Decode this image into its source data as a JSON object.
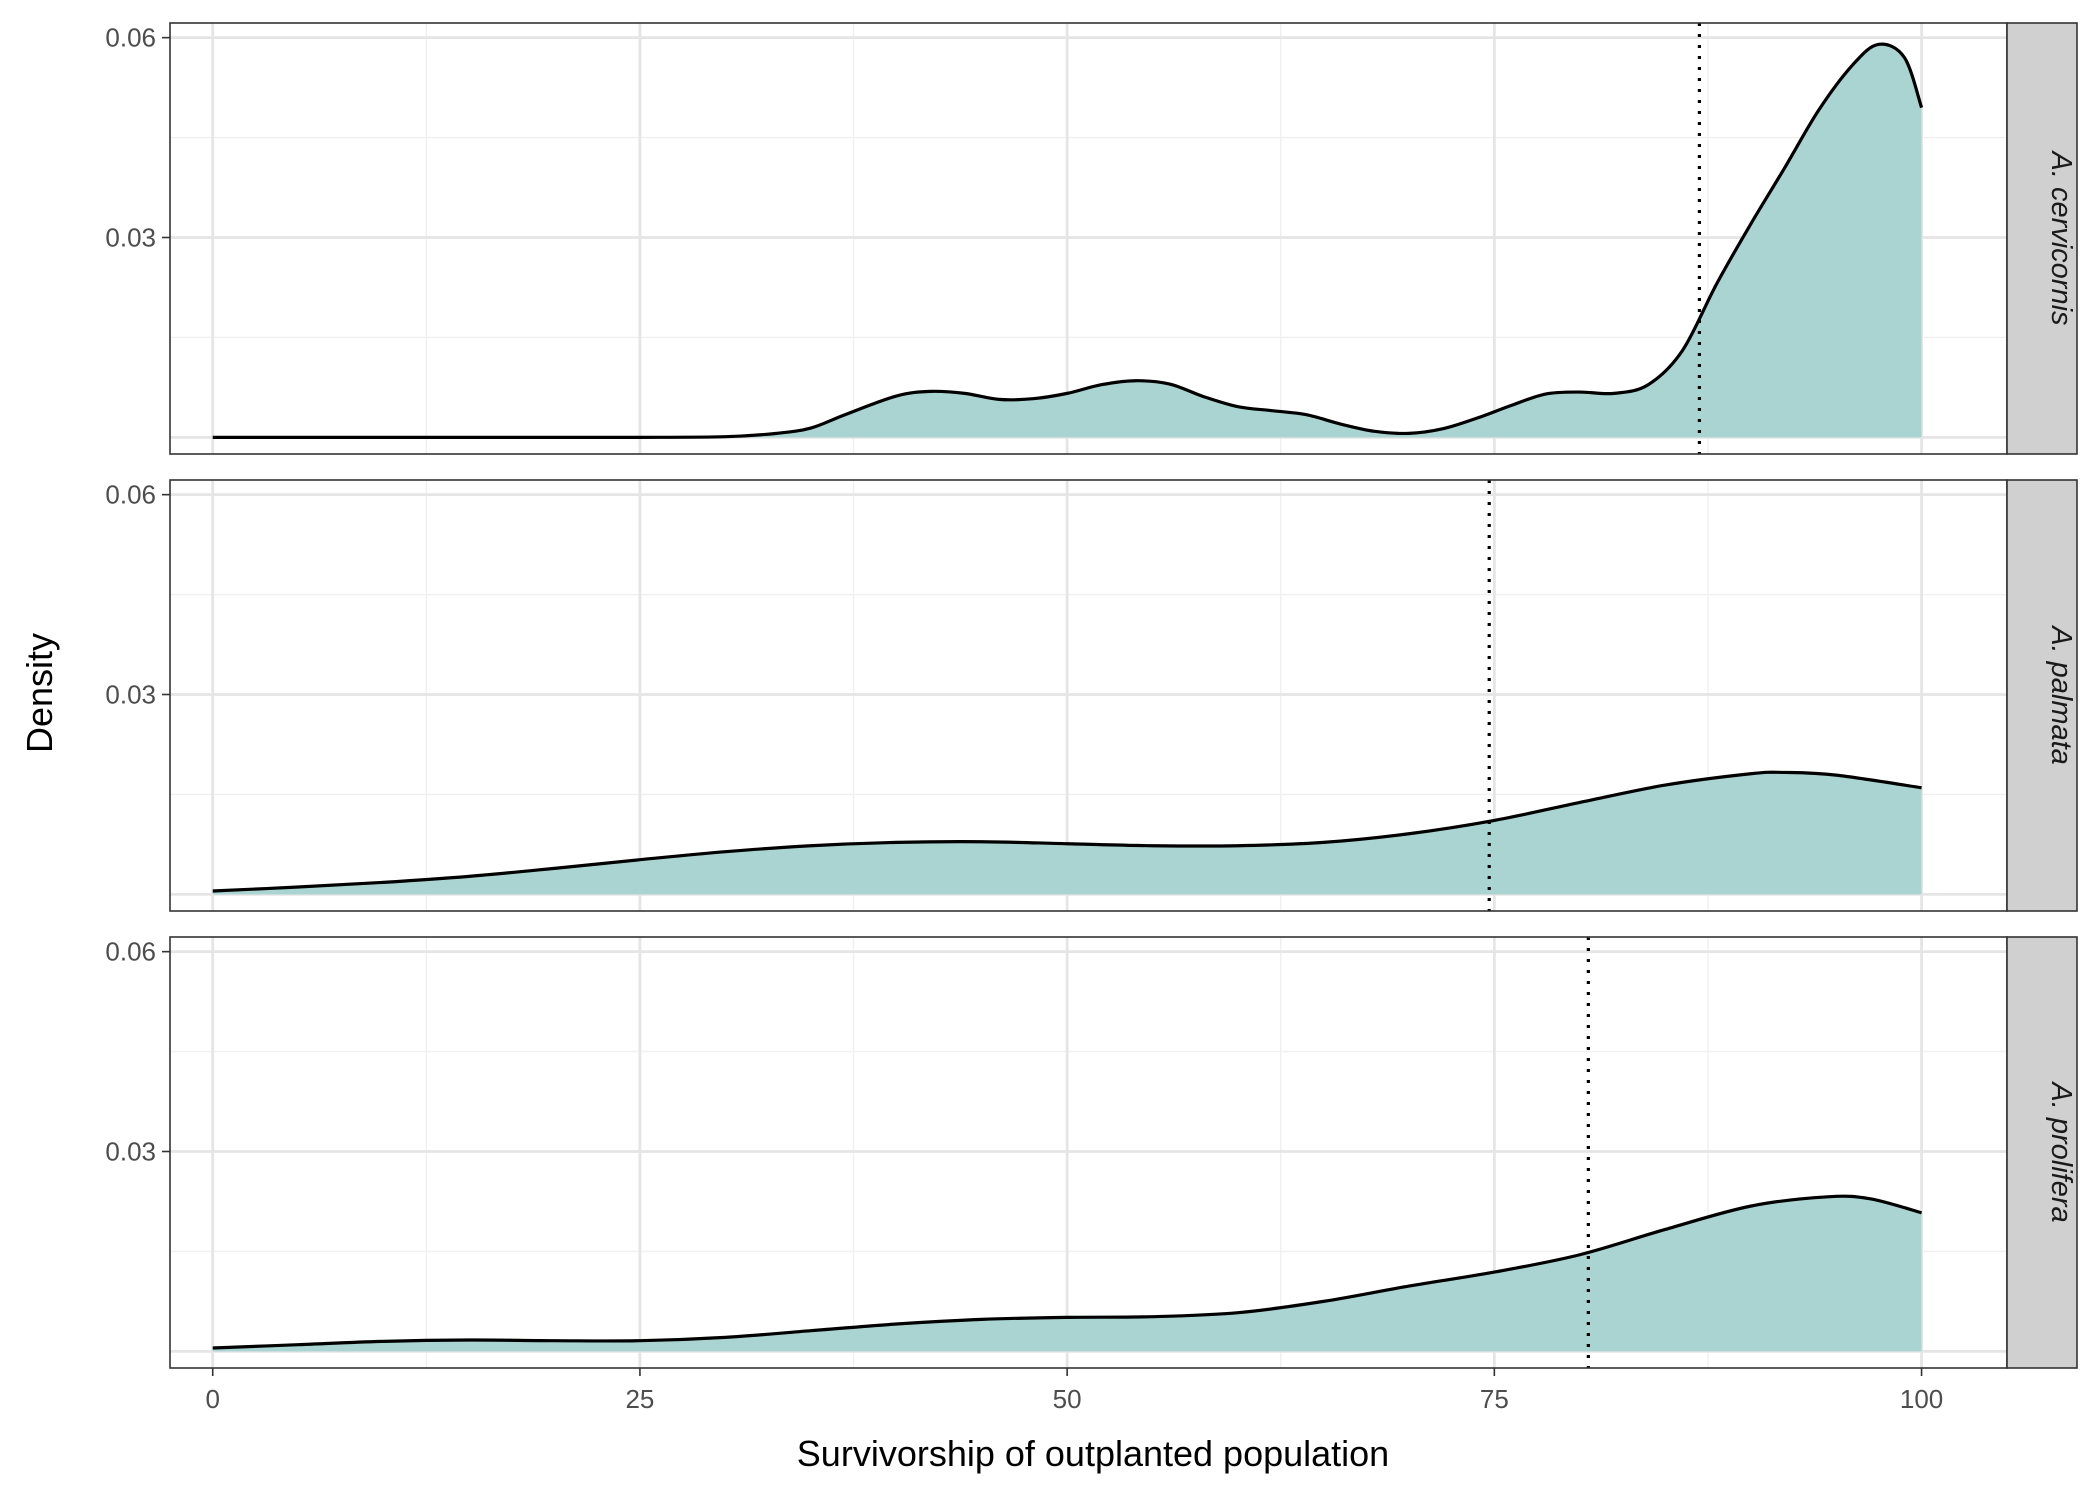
{
  "chart_data": {
    "type": "area",
    "subtype": "faceted density plot",
    "xlabel": "Survivorship of outplanted population",
    "ylabel": "Density",
    "xlim": [
      -2.5,
      105
    ],
    "ylim": [
      -0.0025,
      0.0622
    ],
    "x_ticks": [
      0,
      25,
      50,
      75,
      100
    ],
    "x_tick_labels": [
      "0",
      "25",
      "50",
      "75",
      "100"
    ],
    "y_ticks": [
      0.03,
      0.06
    ],
    "y_tick_labels": [
      "0.03",
      "0.06"
    ],
    "grid": true,
    "facet_strip_position": "right",
    "colors": {
      "fill": "#a9d4d2",
      "line": "#000000",
      "strip_bg": "#d0d0d0",
      "grid_major": "#e5e5e5",
      "grid_minor": "#f0f0f0"
    },
    "facets": [
      {
        "label": "A. cervicornis",
        "reference_line_x": 87,
        "x": [
          0,
          5,
          10,
          15,
          20,
          25,
          30,
          33,
          35,
          37,
          40,
          42,
          44,
          46,
          48,
          50,
          52,
          54,
          56,
          58,
          60,
          62,
          64,
          66,
          68,
          70,
          72,
          74,
          76,
          78,
          80,
          82,
          84,
          86,
          88,
          90,
          92,
          94,
          96,
          97.5,
          99,
          100
        ],
        "y": [
          0.0,
          0.0,
          0.0,
          0.0,
          0.0,
          0.0,
          0.0001,
          0.0006,
          0.0014,
          0.0034,
          0.0062,
          0.0069,
          0.0066,
          0.0057,
          0.0058,
          0.0066,
          0.0079,
          0.0085,
          0.008,
          0.0061,
          0.0046,
          0.004,
          0.0034,
          0.002,
          0.0009,
          0.0006,
          0.0013,
          0.0029,
          0.0048,
          0.0065,
          0.0068,
          0.0066,
          0.0079,
          0.013,
          0.023,
          0.032,
          0.0405,
          0.0492,
          0.056,
          0.059,
          0.057,
          0.0495
        ]
      },
      {
        "label": "A. palmata",
        "reference_line_x": 74.7,
        "x": [
          0,
          5,
          10,
          15,
          20,
          25,
          30,
          35,
          40,
          45,
          50,
          55,
          60,
          65,
          70,
          75,
          80,
          85,
          90,
          92,
          95,
          100
        ],
        "y": [
          0.0005,
          0.0011,
          0.0018,
          0.0027,
          0.0039,
          0.0052,
          0.0064,
          0.0073,
          0.0078,
          0.0079,
          0.0076,
          0.0073,
          0.0073,
          0.0078,
          0.0091,
          0.0111,
          0.0138,
          0.0164,
          0.0181,
          0.0183,
          0.0179,
          0.016
        ]
      },
      {
        "label": "A. prolifera",
        "reference_line_x": 80.5,
        "x": [
          0,
          5,
          10,
          15,
          20,
          25,
          30,
          35,
          40,
          45,
          50,
          55,
          60,
          65,
          70,
          75,
          80,
          85,
          90,
          94.5,
          97,
          100
        ],
        "y": [
          0.0005,
          0.001,
          0.0015,
          0.0017,
          0.0016,
          0.0016,
          0.0021,
          0.0031,
          0.0041,
          0.0048,
          0.0051,
          0.0052,
          0.0058,
          0.0075,
          0.0098,
          0.0119,
          0.0145,
          0.0183,
          0.0218,
          0.0232,
          0.0229,
          0.0208
        ]
      }
    ]
  }
}
